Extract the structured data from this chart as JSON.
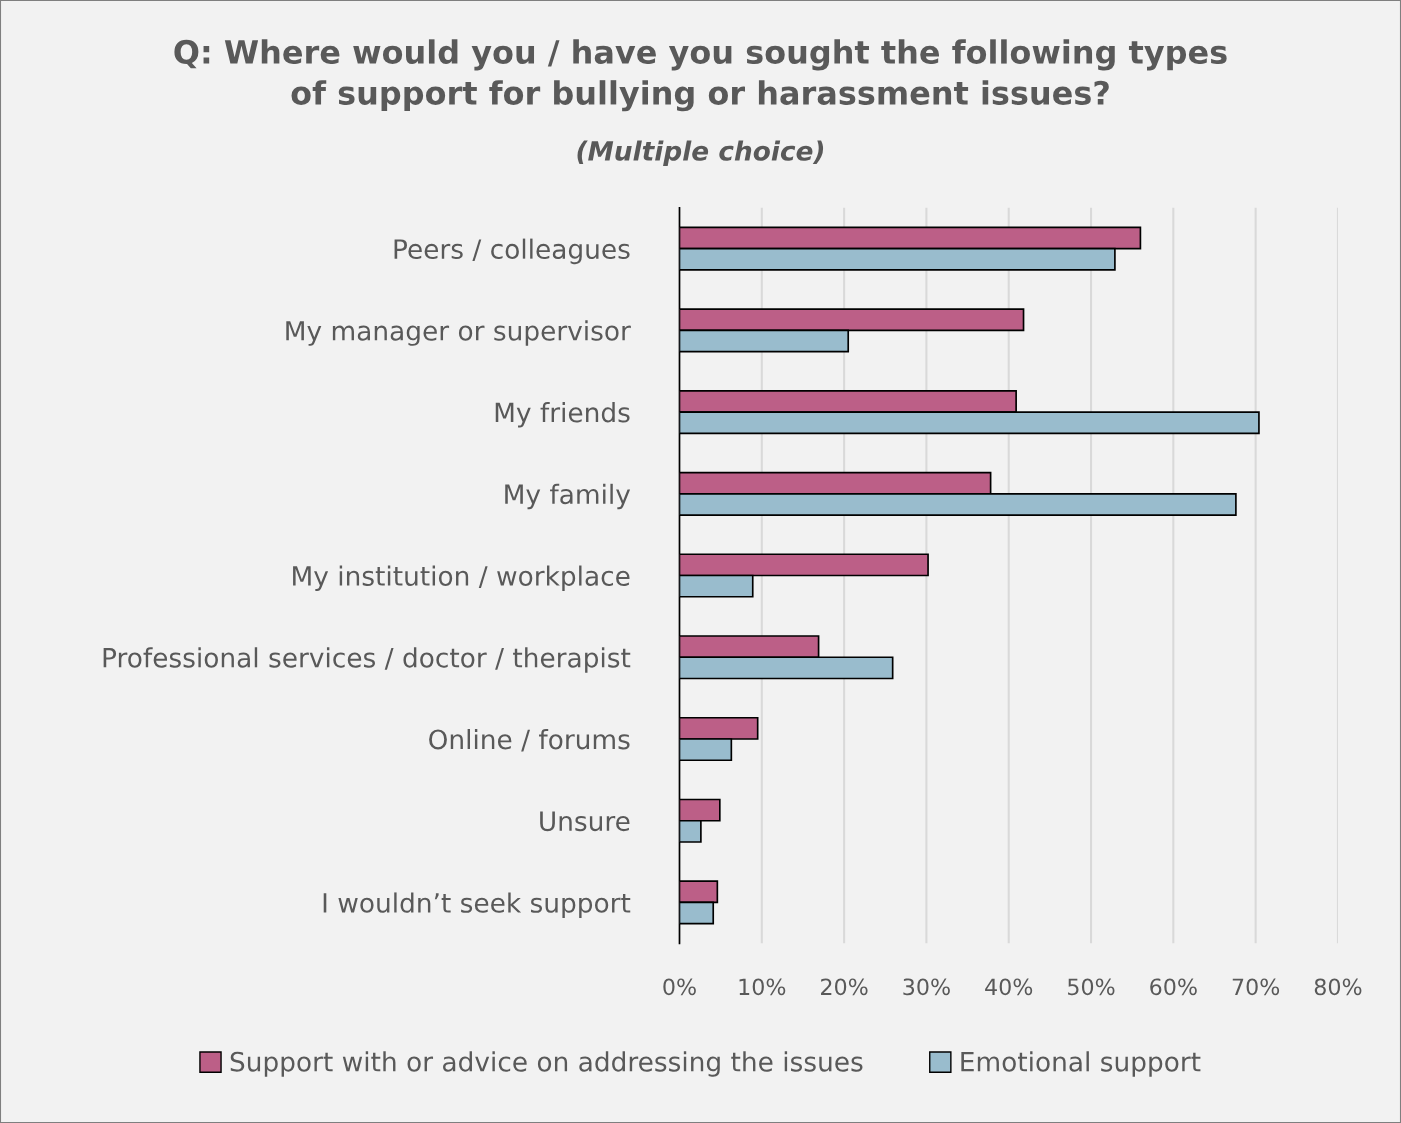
{
  "chart_data": {
    "type": "bar",
    "orientation": "horizontal",
    "title": "Q: Where would you / have you sought the following types\nof support for bullying or harassment issues?",
    "subtitle": "(Multiple choice)",
    "categories": [
      "Peers / colleagues",
      "My manager or supervisor",
      "My friends",
      "My family",
      "My institution / workplace",
      "Professional services / doctor / therapist",
      "Online / forums",
      "Unsure",
      "I wouldn’t seek support"
    ],
    "series": [
      {
        "name": "Support with or advice on addressing the issues",
        "color": "#bc5f87",
        "values": [
          0.56,
          0.418,
          0.409,
          0.378,
          0.302,
          0.169,
          0.095,
          0.049,
          0.046
        ]
      },
      {
        "name": "Emotional support",
        "color": "#99bccd",
        "values": [
          0.529,
          0.205,
          0.704,
          0.676,
          0.089,
          0.259,
          0.063,
          0.026,
          0.041
        ]
      }
    ],
    "xlim": [
      0,
      0.8
    ],
    "xticks": [
      {
        "value": 0,
        "label": "0%"
      },
      {
        "value": 0.1,
        "label": "10%"
      },
      {
        "value": 0.2,
        "label": "20%"
      },
      {
        "value": 0.3,
        "label": "30%"
      },
      {
        "value": 0.4,
        "label": "40%"
      },
      {
        "value": 0.5,
        "label": "50%"
      },
      {
        "value": 0.6,
        "label": "60%"
      },
      {
        "value": 0.7,
        "label": "70%"
      },
      {
        "value": 0.8,
        "label": "80%"
      }
    ],
    "grid": "x",
    "legend": "bottom"
  }
}
